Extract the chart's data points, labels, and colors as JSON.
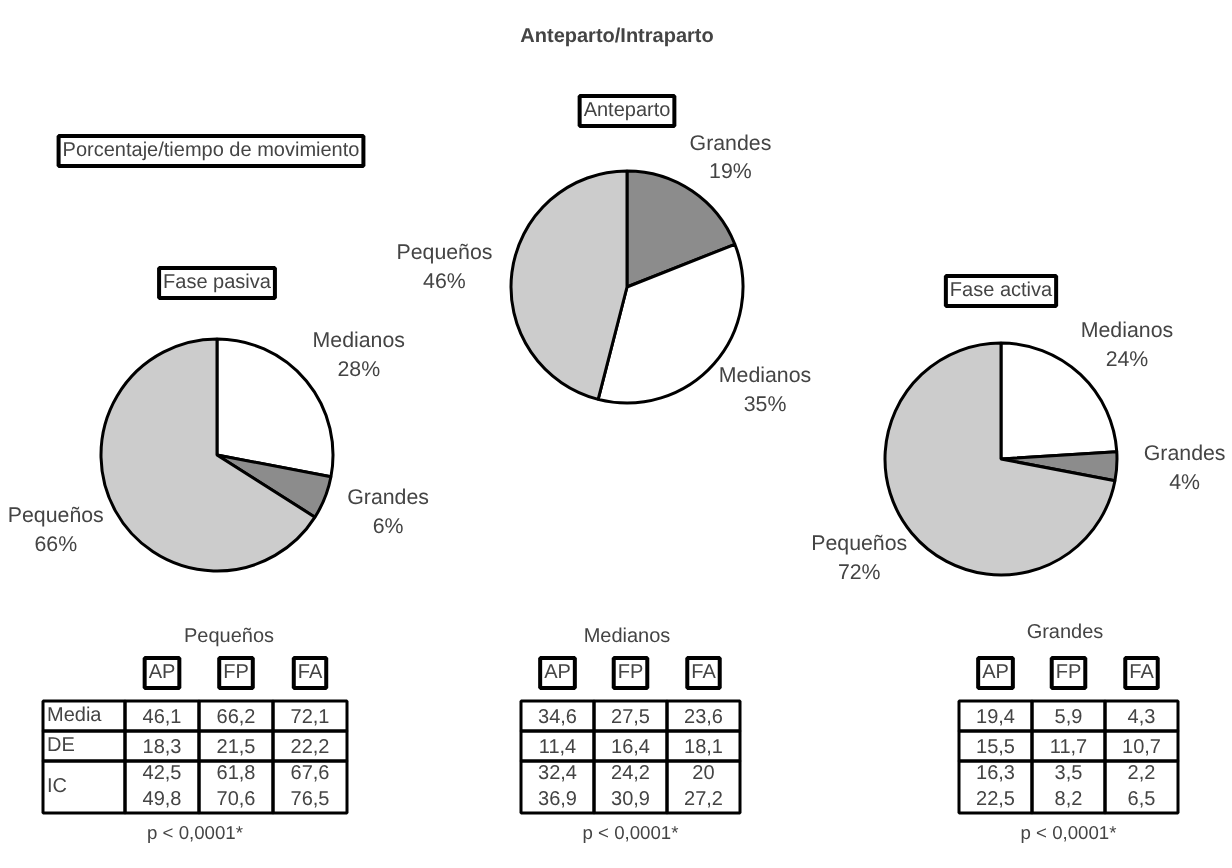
{
  "chart_data": [
    {
      "type": "other",
      "title": "Anteparto/Intraparto",
      "annotations": [
        "Porcentaje/tiempo de movimiento"
      ]
    },
    {
      "type": "pie",
      "title": "Anteparto",
      "categories": [
        "Grandes",
        "Medianos",
        "Pequeños"
      ],
      "values": [
        19,
        35,
        46
      ],
      "value_labels": [
        "19%",
        "35%",
        "46%"
      ],
      "colors": [
        "#8c8c8c",
        "#ffffff",
        "#cccccc"
      ]
    },
    {
      "type": "pie",
      "title": "Fase pasiva",
      "categories": [
        "Medianos",
        "Grandes",
        "Pequeños"
      ],
      "values": [
        28,
        6,
        66
      ],
      "value_labels": [
        "28%",
        "6%",
        "66%"
      ],
      "colors": [
        "#ffffff",
        "#8c8c8c",
        "#cccccc"
      ]
    },
    {
      "type": "pie",
      "title": "Fase activa",
      "categories": [
        "Medianos",
        "Grandes",
        "Pequeños"
      ],
      "values": [
        24,
        4,
        72
      ],
      "value_labels": [
        "24%",
        "4%",
        "72%"
      ],
      "colors": [
        "#ffffff",
        "#8c8c8c",
        "#cccccc"
      ]
    },
    {
      "type": "other",
      "title": "Pequeños",
      "categories": [
        "AP",
        "FP",
        "FA"
      ],
      "y_categories": [
        "Media",
        "DE",
        "IC"
      ],
      "cell_labels": [
        [
          "46,1",
          "66,2",
          "72,1"
        ],
        [
          "18,3",
          "21,5",
          "22,2"
        ],
        [
          "42,5\n49,8",
          "61,8\n70,6",
          "67,6\n76,5"
        ]
      ],
      "annotations": [
        "p < 0,0001*"
      ]
    },
    {
      "type": "other",
      "title": "Medianos",
      "categories": [
        "AP",
        "FP",
        "FA"
      ],
      "y_categories": [
        null,
        null,
        null
      ],
      "cell_labels": [
        [
          "34,6",
          "27,5",
          "23,6"
        ],
        [
          "11,4",
          "16,4",
          "18,1"
        ],
        [
          "32,4\n36,9",
          "24,2\n30,9",
          "20\n27,2"
        ]
      ],
      "annotations": [
        "p < 0,0001*"
      ]
    },
    {
      "type": "other",
      "title": "Grandes",
      "categories": [
        "AP",
        "FP",
        "FA"
      ],
      "y_categories": [
        null,
        null,
        null
      ],
      "cell_labels": [
        [
          "19,4",
          "5,9",
          "4,3"
        ],
        [
          "15,5",
          "11,7",
          "10,7"
        ],
        [
          "16,3\n22,5",
          "3,5\n8,2",
          "2,2\n6,5"
        ]
      ],
      "annotations": [
        "p < 0,0001*"
      ]
    }
  ]
}
